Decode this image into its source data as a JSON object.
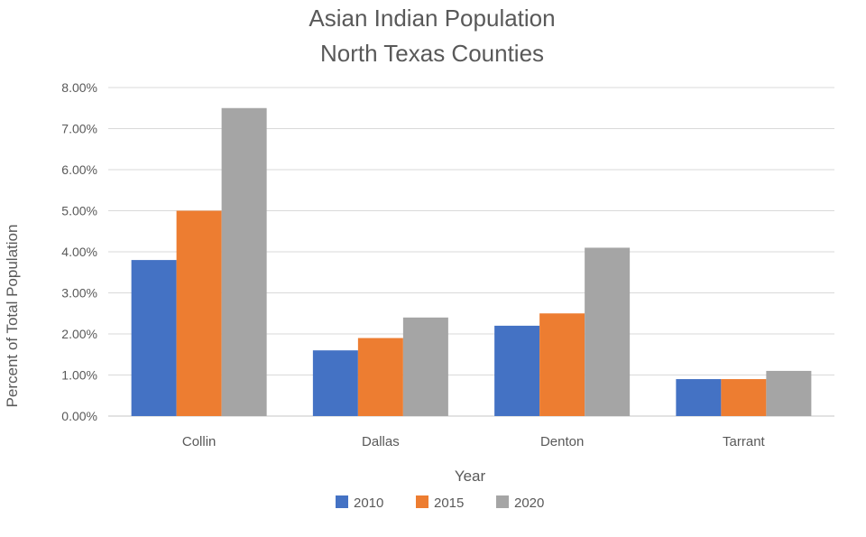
{
  "chart_data": {
    "type": "bar",
    "title": [
      "Asian Indian Population",
      "North Texas Counties"
    ],
    "xlabel": "Year",
    "ylabel": "Percent of Total Population",
    "categories": [
      "Collin",
      "Dallas",
      "Denton",
      "Tarrant"
    ],
    "series": [
      {
        "name": "2010",
        "color": "#4472C4",
        "values": [
          3.8,
          1.6,
          2.2,
          0.9
        ]
      },
      {
        "name": "2015",
        "color": "#ED7D31",
        "values": [
          5.0,
          1.9,
          2.5,
          0.9
        ]
      },
      {
        "name": "2020",
        "color": "#A5A5A5",
        "values": [
          7.5,
          2.4,
          4.1,
          1.1
        ]
      }
    ],
    "ylim": [
      0,
      8
    ],
    "ytick_step": 1,
    "ytick_labels": [
      "0.00%",
      "1.00%",
      "2.00%",
      "3.00%",
      "4.00%",
      "5.00%",
      "6.00%",
      "7.00%",
      "8.00%"
    ],
    "grid": true,
    "legend_position": "bottom",
    "gridline_color": "#D9D9D9"
  }
}
